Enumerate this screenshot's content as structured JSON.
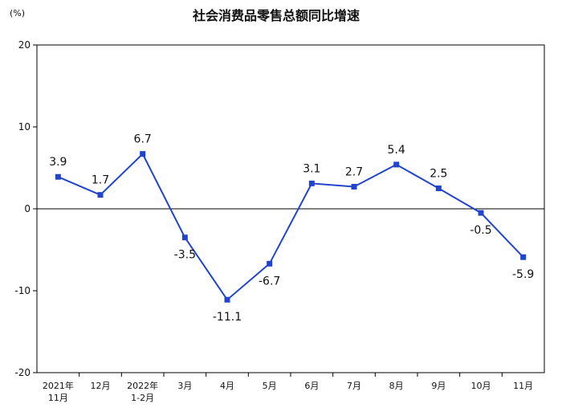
{
  "chart_data": {
    "type": "line",
    "title": "社会消费品零售总额同比增速",
    "unit_label": "(%)",
    "xlabel": "",
    "ylabel": "",
    "ylim": [
      -20,
      20
    ],
    "yticks": [
      "20",
      "10",
      "0",
      "-10",
      "-20"
    ],
    "grid": false,
    "categories": [
      [
        "2021年",
        "11月"
      ],
      [
        "12月"
      ],
      [
        "2022年",
        "1-2月"
      ],
      [
        "3月"
      ],
      [
        "4月"
      ],
      [
        "5月"
      ],
      [
        "6月"
      ],
      [
        "7月"
      ],
      [
        "8月"
      ],
      [
        "9月"
      ],
      [
        "10月"
      ],
      [
        "11月"
      ]
    ],
    "series": [
      {
        "values": [
          3.9,
          1.7,
          6.7,
          -3.5,
          -11.1,
          -6.7,
          3.1,
          2.7,
          5.4,
          2.5,
          -0.5,
          -5.9
        ],
        "labels": [
          "3.9",
          "1.7",
          "6.7",
          "-3.5",
          "-11.1",
          "-6.7",
          "3.1",
          "2.7",
          "5.4",
          "2.5",
          "-0.5",
          "-5.9"
        ]
      }
    ],
    "colors": {
      "line": "#2244cc",
      "marker": "#2244cc",
      "axis": "#000000"
    }
  }
}
